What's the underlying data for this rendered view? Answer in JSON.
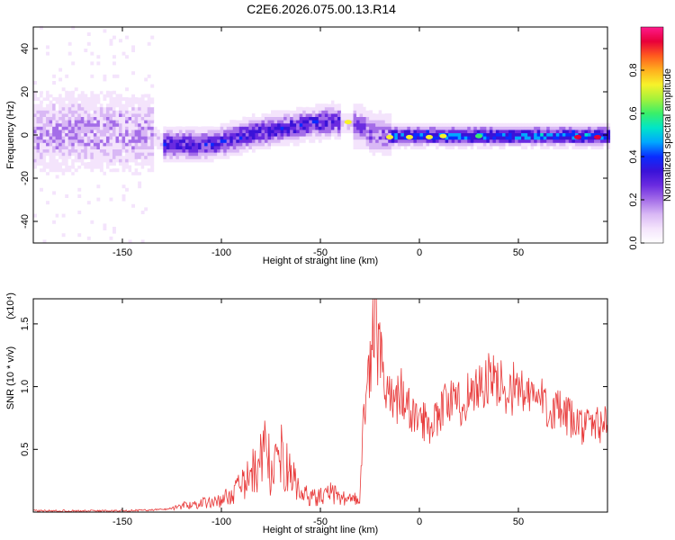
{
  "title": "C2E6.2026.075.00.13.R14",
  "colors": {
    "snr_line": "#e83a3a",
    "background": "#ffffff",
    "frame": "#000000",
    "colormap": [
      "#ffffff",
      "#f4e4fc",
      "#d9b8f5",
      "#a46de8",
      "#6a2be0",
      "#3a12d8",
      "#0a2cff",
      "#00a8ff",
      "#00e5c8",
      "#39ef6a",
      "#a6f23a",
      "#f7f22a",
      "#ffb01e",
      "#ff5a1e",
      "#e8003a",
      "#ff1a8c"
    ]
  },
  "chart_data": [
    {
      "type": "heatmap",
      "title": "C2E6.2026.075.00.13.R14",
      "xlabel": "Height of straight line (km)",
      "ylabel": "Frequency (Hz)",
      "xlim": [
        -195,
        95
      ],
      "ylim": [
        -50,
        50
      ],
      "x_ticks": [
        -150,
        -100,
        -50,
        0,
        50
      ],
      "y_ticks": [
        -40,
        -20,
        0,
        20,
        40
      ],
      "colorbar": {
        "label": "Normalized spectral amplitude",
        "range": [
          0.0,
          1.0
        ],
        "ticks": [
          "0.0",
          "0.2",
          "0.4",
          "0.6",
          "0.8"
        ],
        "tick_values": [
          0.0,
          0.2,
          0.4,
          0.6,
          0.8
        ]
      },
      "ridge_center": {
        "x": [
          -195,
          -170,
          -150,
          -135,
          -130,
          -120,
          -110,
          -100,
          -90,
          -80,
          -70,
          -60,
          -50,
          -45,
          -40,
          -35,
          -30,
          -25,
          -20,
          -15,
          -10,
          0,
          20,
          40,
          60,
          80,
          95
        ],
        "freq": [
          0,
          1,
          0,
          0,
          -5,
          -5,
          -5,
          -4,
          -1,
          1,
          2,
          4,
          5,
          6,
          5,
          4,
          3,
          0,
          0,
          -1,
          -1,
          -1,
          -1,
          -1,
          -1,
          -1,
          -1
        ]
      },
      "amplitude_regions": [
        {
          "x": [
            -195,
            -135
          ],
          "amplitude": 0.12,
          "spread_hz": 10
        },
        {
          "x": [
            -130,
            -40
          ],
          "amplitude": 0.3,
          "spread_hz": 4
        },
        {
          "x": [
            -35,
            -15
          ],
          "amplitude": 0.22,
          "spread_hz": 5
        },
        {
          "x": [
            -15,
            95
          ],
          "amplitude": 0.4,
          "spread_hz": 2.5
        }
      ],
      "peak_points": [
        {
          "x": -36,
          "freq": 6,
          "amplitude": 0.7
        },
        {
          "x": -15,
          "freq": -1,
          "amplitude": 0.75
        },
        {
          "x": -5,
          "freq": -1,
          "amplitude": 0.7
        },
        {
          "x": 5,
          "freq": -1,
          "amplitude": 0.72
        },
        {
          "x": 12,
          "freq": -0.5,
          "amplitude": 0.7
        },
        {
          "x": 30,
          "freq": -0.5,
          "amplitude": 0.6
        },
        {
          "x": 80,
          "freq": -1,
          "amplitude": 0.9
        },
        {
          "x": 90,
          "freq": -1,
          "amplitude": 0.9
        }
      ]
    },
    {
      "type": "line",
      "xlabel": "Height of straight line (km)",
      "ylabel": "SNR (10 * v/v)",
      "y_multiplier": "(x10⁴)",
      "xlim": [
        -195,
        95
      ],
      "ylim": [
        0,
        1.7
      ],
      "x_ticks": [
        -150,
        -100,
        -50,
        0,
        50
      ],
      "y_ticks": [
        0.5,
        1.0,
        1.5
      ],
      "y_tick_labels": [
        "0.5",
        "1.0",
        "1.5"
      ],
      "series": [
        {
          "x": [
            -195,
            -170,
            -150,
            -130,
            -125,
            -120,
            -110,
            -100,
            -95,
            -90,
            -85,
            -80,
            -78,
            -75,
            -72,
            -70,
            -65,
            -60,
            -55,
            -50,
            -45,
            -40,
            -35,
            -30,
            -28,
            -25,
            -22,
            -21,
            -20,
            -18,
            -15,
            -12,
            -10,
            -5,
            0,
            5,
            10,
            15,
            20,
            25,
            30,
            35,
            40,
            45,
            50,
            55,
            60,
            65,
            70,
            75,
            80,
            85,
            90,
            95
          ],
          "values": [
            0.01,
            0.01,
            0.01,
            0.02,
            0.03,
            0.05,
            0.07,
            0.09,
            0.15,
            0.2,
            0.3,
            0.4,
            0.6,
            0.3,
            0.35,
            0.45,
            0.3,
            0.15,
            0.12,
            0.12,
            0.15,
            0.12,
            0.1,
            0.15,
            0.8,
            1.1,
            1.7,
            1.2,
            1.3,
            1.0,
            0.9,
            0.85,
            1.0,
            0.8,
            0.75,
            0.7,
            0.8,
            0.9,
            0.85,
            0.95,
            1.0,
            1.05,
            1.02,
            0.98,
            1.0,
            0.9,
            0.92,
            0.85,
            0.8,
            0.75,
            0.7,
            0.68,
            0.7,
            0.72
          ]
        }
      ]
    }
  ]
}
